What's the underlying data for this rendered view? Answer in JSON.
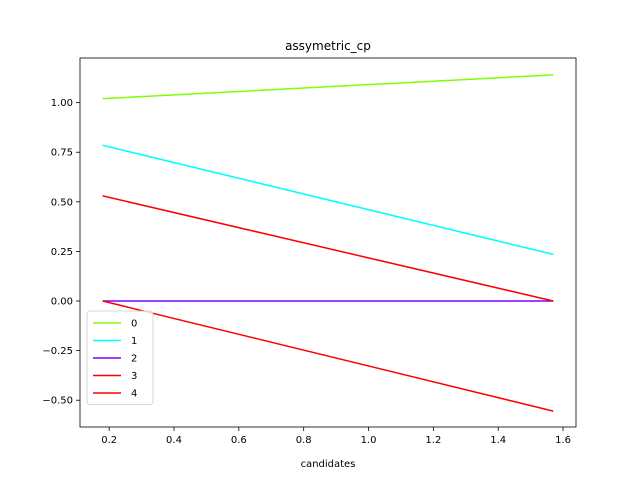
{
  "chart_data": {
    "type": "line",
    "title": "assymetric_cp",
    "xlabel": "candidates",
    "ylabel": "",
    "xlim": [
      0.11,
      1.64
    ],
    "ylim": [
      -0.635,
      1.225
    ],
    "x_ticks": [
      0.2,
      0.4,
      0.6,
      0.8,
      1.0,
      1.2,
      1.4,
      1.6
    ],
    "x_tick_labels": [
      "0.2",
      "0.4",
      "0.6",
      "0.8",
      "1.0",
      "1.2",
      "1.4",
      "1.6"
    ],
    "y_ticks": [
      -0.5,
      -0.25,
      0.0,
      0.25,
      0.5,
      0.75,
      1.0
    ],
    "y_tick_labels": [
      "−0.50",
      "−0.25",
      "0.00",
      "0.25",
      "0.50",
      "0.75",
      "1.00"
    ],
    "grid": false,
    "legend_position": "lower-left",
    "series": [
      {
        "name": "0",
        "color": "#80ff00",
        "x": [
          0.18,
          1.57
        ],
        "y": [
          1.02,
          1.14
        ]
      },
      {
        "name": "1",
        "color": "#00ffff",
        "x": [
          0.18,
          1.57
        ],
        "y": [
          0.785,
          0.235
        ]
      },
      {
        "name": "2",
        "color": "#8000ff",
        "x": [
          0.18,
          1.57
        ],
        "y": [
          0.0,
          0.0
        ]
      },
      {
        "name": "3",
        "color": "#ff0000",
        "x": [
          0.18,
          1.57
        ],
        "y": [
          0.53,
          0.0
        ]
      },
      {
        "name": "4",
        "color": "#ff0000",
        "x": [
          0.18,
          1.57
        ],
        "y": [
          0.0,
          -0.555
        ]
      }
    ]
  }
}
